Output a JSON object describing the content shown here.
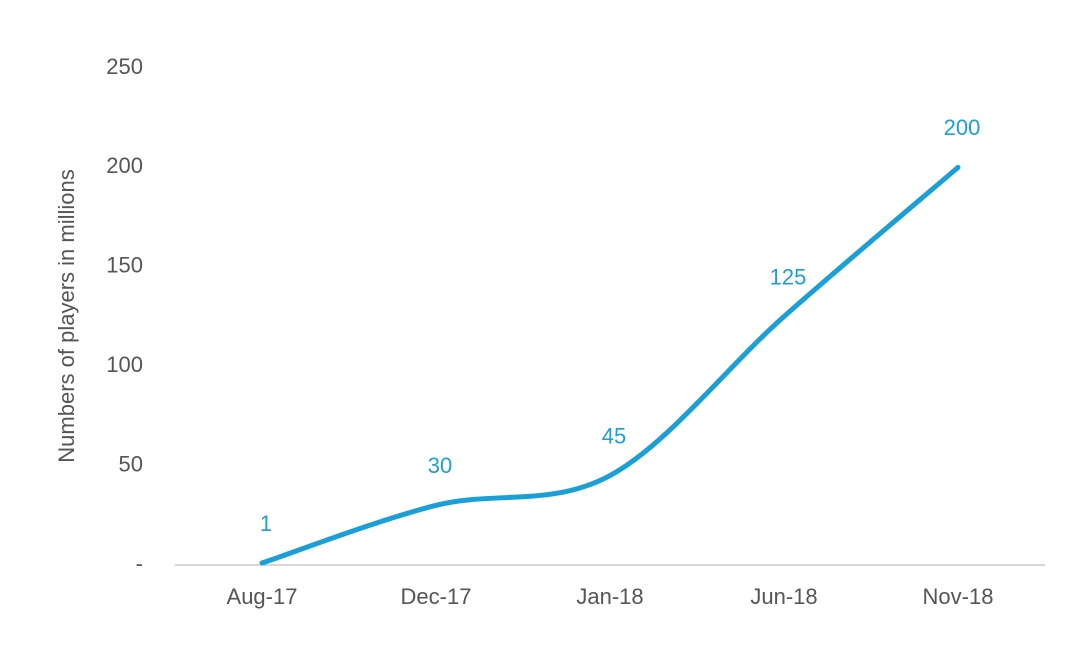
{
  "chart_data": {
    "type": "line",
    "ylabel": "Numbers of players in millions",
    "categories": [
      "Aug-17",
      "Dec-17",
      "Jan-18",
      "Jun-18",
      "Nov-18"
    ],
    "values": [
      1,
      30,
      45,
      125,
      200
    ],
    "color": "#1a9fd6",
    "ylim": [
      0,
      250
    ],
    "yticks": [
      {
        "value": 0,
        "label": "-"
      },
      50,
      100,
      150,
      200,
      250
    ],
    "grid": false,
    "smooth": true
  }
}
